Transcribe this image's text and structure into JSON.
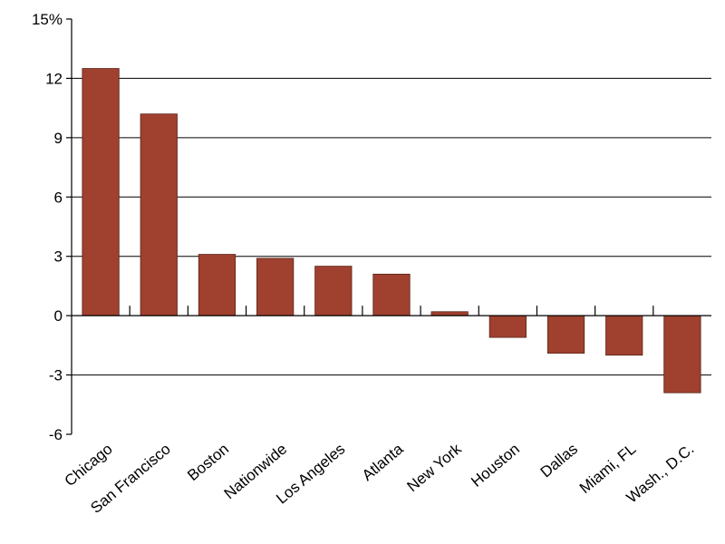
{
  "chart_data": {
    "type": "bar",
    "title": "",
    "xlabel": "",
    "ylabel": "",
    "categories": [
      "Chicago",
      "San Francisco",
      "Boston",
      "Nationwide",
      "Los Angeles",
      "Atlanta",
      "New York",
      "Houston",
      "Dallas",
      "Miami, FL",
      "Wash., D.C."
    ],
    "series": [
      {
        "values": [
          12.5,
          10.2,
          3.1,
          2.9,
          2.5,
          2.1,
          0.2,
          -1.1,
          -1.9,
          -2.0,
          -3.9
        ]
      }
    ],
    "ylim": [
      -6,
      15
    ],
    "yticks": [
      -6,
      -3,
      0,
      3,
      6,
      9,
      12,
      15
    ],
    "ytick_labels": [
      "-6",
      "-3",
      "0",
      "3",
      "6",
      "9",
      "12",
      "15%"
    ],
    "grid": true,
    "bar_color": "#a0402f"
  }
}
